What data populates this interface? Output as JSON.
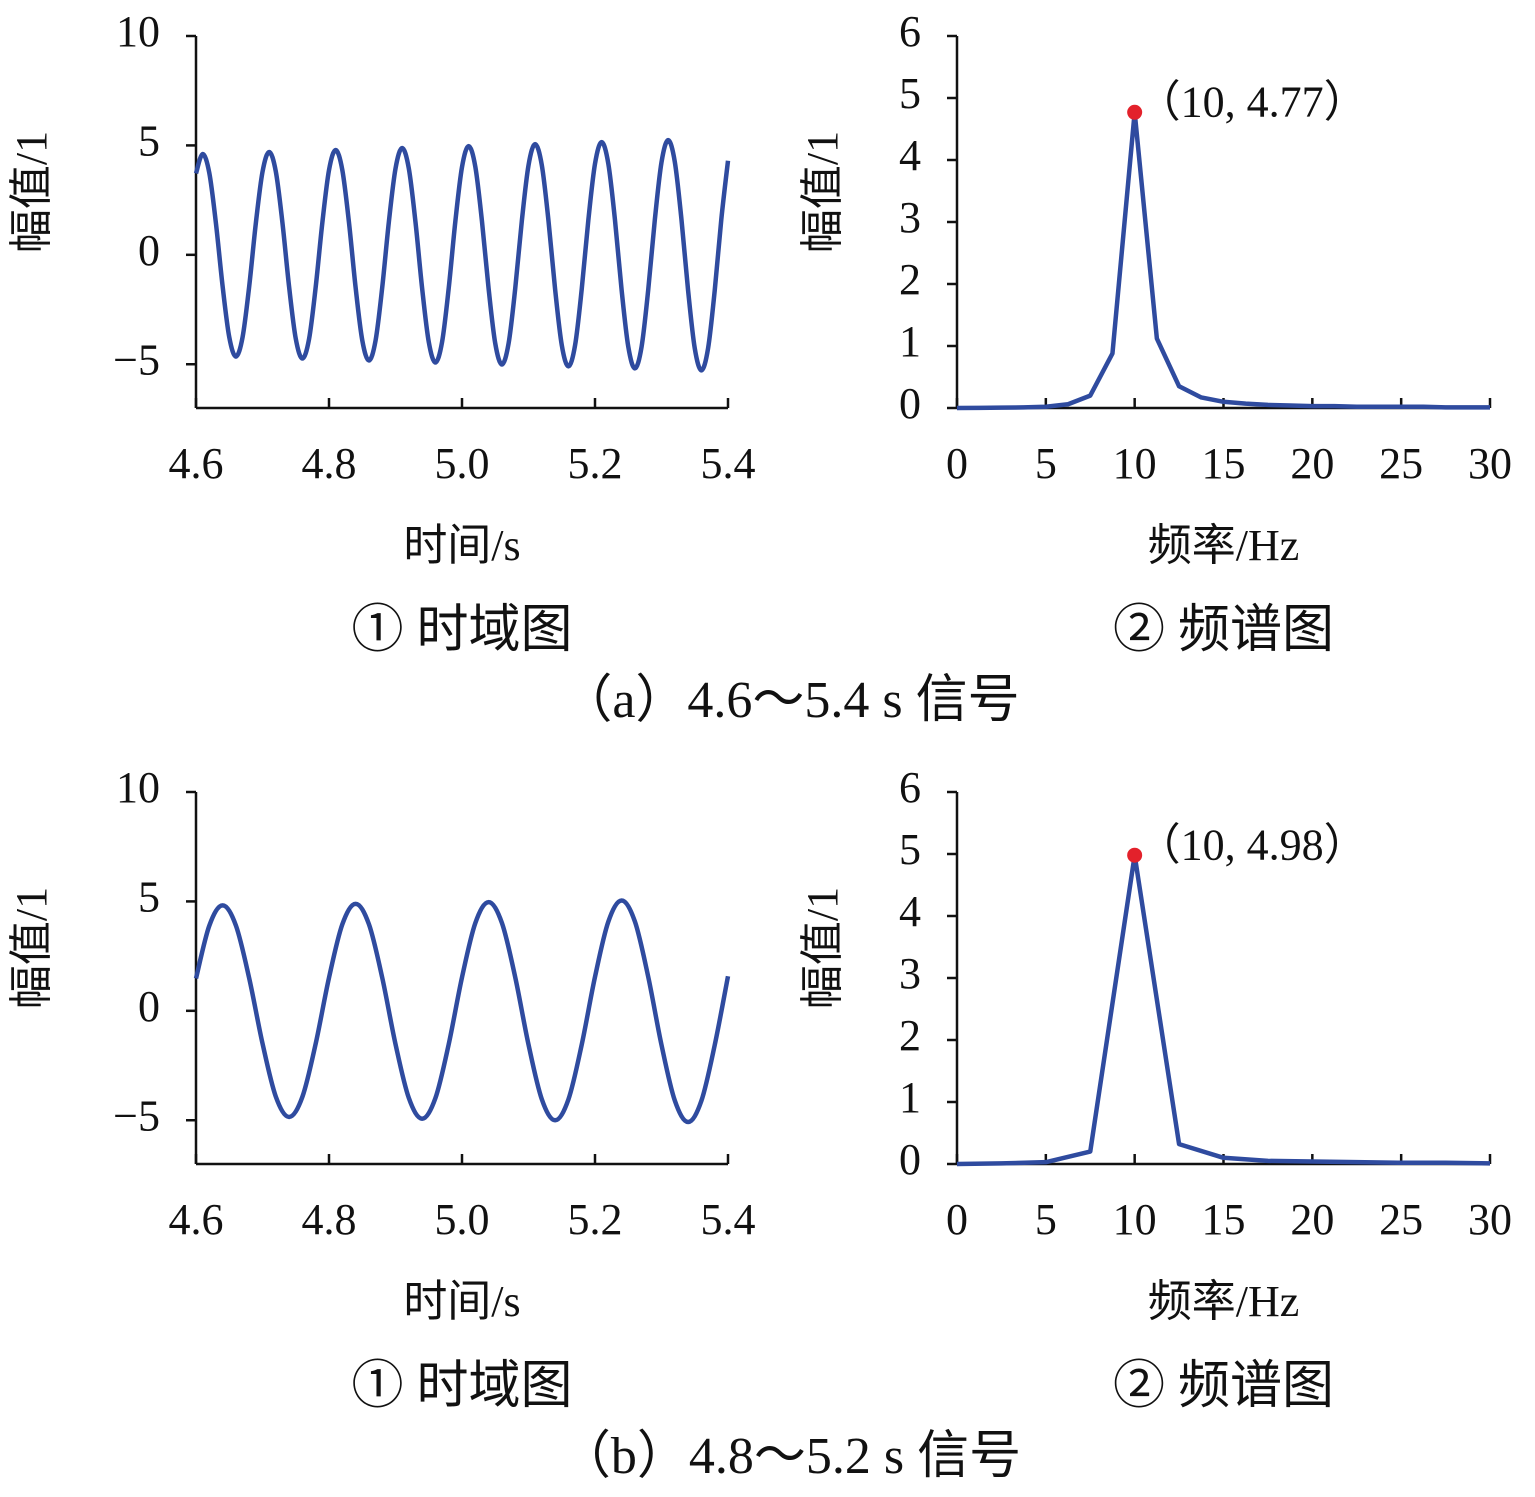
{
  "group_captions": [
    "（a）4.6～5.4 s 信号",
    "（b）4.8～5.2 s 信号"
  ],
  "chart_data": [
    {
      "type": "line",
      "caption": "① 时域图",
      "xlabel": "时间/s",
      "ylabel": "幅值/1",
      "color": "#2f4b9f",
      "xlim": [
        4.6,
        5.4
      ],
      "ylim": [
        -7,
        10
      ],
      "xticks": [
        4.6,
        4.8,
        {
          "value": 5,
          "label": "5.0"
        },
        5.2,
        5.4
      ],
      "yticks": [
        10,
        5,
        0,
        {
          "value": -5,
          "label": "−5"
        }
      ],
      "x": [
        4.6,
        4.61,
        4.62,
        4.63,
        4.64,
        4.65,
        4.66,
        4.67,
        4.68,
        4.69,
        4.7,
        4.71,
        4.72,
        4.73,
        4.74,
        4.75,
        4.76,
        4.77,
        4.78,
        4.79,
        4.8,
        4.81,
        4.82,
        4.83,
        4.84,
        4.85,
        4.86,
        4.87,
        4.88,
        4.89,
        4.9,
        4.91,
        4.92,
        4.93,
        4.94,
        4.95,
        4.96,
        4.97,
        4.98,
        4.99,
        5,
        5.01,
        5.02,
        5.03,
        5.04,
        5.05,
        5.06,
        5.07,
        5.08,
        5.09,
        5.1,
        5.11,
        5.12,
        5.13,
        5.14,
        5.15,
        5.16,
        5.17,
        5.18,
        5.19,
        5.2,
        5.21,
        5.22,
        5.23,
        5.24,
        5.25,
        5.26,
        5.27,
        5.28,
        5.29,
        5.3,
        5.31,
        5.32,
        5.33,
        5.34,
        5.35,
        5.36,
        5.37,
        5.38,
        5.39,
        5.4
      ],
      "values": [
        3.72,
        4.61,
        3.74,
        1.43,
        -1.43,
        -3.76,
        -4.65,
        -3.77,
        -1.44,
        1.45,
        3.79,
        4.7,
        3.81,
        1.46,
        -1.46,
        -3.83,
        -4.74,
        -3.85,
        -1.47,
        1.47,
        3.87,
        4.79,
        3.88,
        1.49,
        -1.49,
        -3.9,
        -4.83,
        -3.92,
        -1.5,
        1.5,
        3.94,
        4.88,
        3.95,
        1.51,
        -1.52,
        -3.98,
        -4.92,
        -3.99,
        -1.53,
        1.53,
        4.01,
        4.97,
        4.03,
        1.54,
        -1.54,
        -4.05,
        -5.01,
        -4.06,
        -1.55,
        1.56,
        4.09,
        5.06,
        4.1,
        1.57,
        -1.57,
        -4.12,
        -5.1,
        -4.14,
        -1.58,
        1.59,
        4.16,
        5.15,
        4.17,
        1.6,
        -1.6,
        -4.19,
        -5.19,
        -4.21,
        -1.61,
        1.61,
        4.23,
        5.24,
        4.25,
        1.62,
        -1.63,
        -4.27,
        -5.28,
        -4.28,
        -1.64,
        1.64,
        4.3
      ]
    },
    {
      "type": "line",
      "caption": "② 频谱图",
      "xlabel": "频率/Hz",
      "ylabel": "幅值/1",
      "color": "#2f4b9f",
      "xlim": [
        0,
        30
      ],
      "ylim": [
        0,
        6
      ],
      "xticks": [
        0,
        5,
        10,
        15,
        20,
        25,
        30
      ],
      "yticks": [
        6,
        5,
        4,
        3,
        2,
        1,
        0
      ],
      "x": [
        0,
        1.25,
        2.5,
        3.75,
        5,
        6.25,
        7.5,
        8.75,
        10,
        11.25,
        12.5,
        13.75,
        15,
        16.25,
        17.5,
        18.75,
        20,
        21.25,
        22.5,
        23.75,
        25,
        26.25,
        27.5,
        28.75,
        30
      ],
      "values": [
        0,
        0.003,
        0.006,
        0.01,
        0.02,
        0.06,
        0.2,
        0.88,
        4.77,
        1.12,
        0.35,
        0.17,
        0.1,
        0.07,
        0.05,
        0.04,
        0.03,
        0.03,
        0.02,
        0.02,
        0.02,
        0.02,
        0.01,
        0.01,
        0.01
      ],
      "peak": {
        "x": 10,
        "y": 4.77,
        "label": "（10, 4.77）",
        "color": "#e3212b"
      }
    },
    {
      "type": "line",
      "caption": "① 时域图",
      "xlabel": "时间/s",
      "ylabel": "幅值/1",
      "color": "#2f4b9f",
      "xlim": [
        4.6,
        5.4
      ],
      "ylim": [
        -7,
        10
      ],
      "xticks": [
        4.6,
        4.8,
        {
          "value": 5,
          "label": "5.0"
        },
        5.2,
        5.4
      ],
      "yticks": [
        10,
        5,
        0,
        {
          "value": -5,
          "label": "−5"
        }
      ],
      "x": [
        4.6,
        4.62,
        4.64,
        4.66,
        4.68,
        4.7,
        4.72,
        4.74,
        4.76,
        4.78,
        4.8,
        4.82,
        4.84,
        4.86,
        4.88,
        4.9,
        4.92,
        4.94,
        4.96,
        4.98,
        5,
        5.02,
        5.04,
        5.06,
        5.08,
        5.1,
        5.12,
        5.14,
        5.16,
        5.18,
        5.2,
        5.22,
        5.24,
        5.26,
        5.28,
        5.3,
        5.32,
        5.34,
        5.36,
        5.38,
        5.4
      ],
      "values": [
        1.48,
        3.89,
        4.82,
        3.9,
        1.49,
        -1.49,
        -3.92,
        -4.85,
        -3.93,
        -1.5,
        1.51,
        3.95,
        4.89,
        3.96,
        1.52,
        -1.52,
        -3.98,
        -4.93,
        -3.99,
        -1.53,
        1.53,
        4.01,
        4.97,
        4.02,
        1.54,
        -1.54,
        -4.04,
        -5.0,
        -4.05,
        -1.55,
        1.55,
        4.07,
        5.04,
        4.08,
        1.56,
        -1.56,
        -4.1,
        -5.08,
        -4.11,
        -1.57,
        1.58
      ]
    },
    {
      "type": "line",
      "caption": "② 频谱图",
      "xlabel": "频率/Hz",
      "ylabel": "幅值/1",
      "color": "#2f4b9f",
      "xlim": [
        0,
        30
      ],
      "ylim": [
        0,
        6
      ],
      "xticks": [
        0,
        5,
        10,
        15,
        20,
        25,
        30
      ],
      "yticks": [
        6,
        5,
        4,
        3,
        2,
        1,
        0
      ],
      "x": [
        0,
        2.5,
        5,
        7.5,
        10,
        12.5,
        15,
        17.5,
        20,
        22.5,
        25,
        27.5,
        30
      ],
      "values": [
        0,
        0.01,
        0.03,
        0.2,
        4.98,
        0.32,
        0.1,
        0.05,
        0.04,
        0.03,
        0.02,
        0.02,
        0.01
      ],
      "peak": {
        "x": 10,
        "y": 4.98,
        "label": "（10, 4.98）",
        "color": "#e3212b"
      }
    }
  ]
}
